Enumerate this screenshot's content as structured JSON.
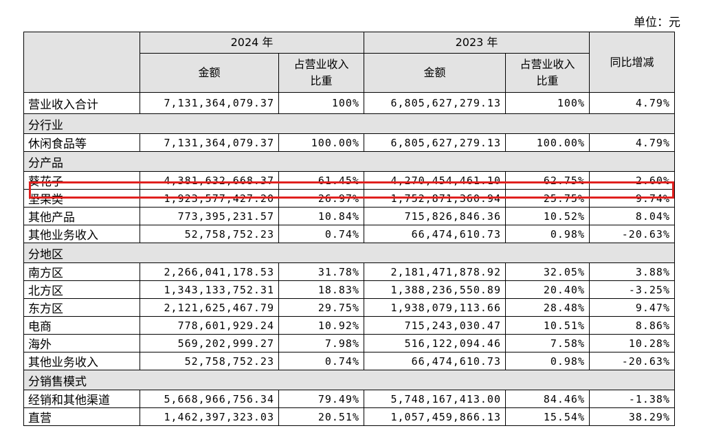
{
  "unit_label": "单位：元",
  "header": {
    "year_2024": "2024 年",
    "year_2023": "2023 年",
    "amount": "金额",
    "share_line1": "占营业收入",
    "share_line2": "比重",
    "yoy": "同比增减"
  },
  "total": {
    "label": "营业收入合计",
    "amt_2024": "7,131,364,079.37",
    "pct_2024": "100%",
    "amt_2023": "6,805,627,279.13",
    "pct_2023": "100%",
    "yoy": "4.79%"
  },
  "sections": {
    "industry": "分行业",
    "product": "分产品",
    "region": "分地区",
    "sales_mode": "分销售模式"
  },
  "rows": [
    {
      "label": "休闲食品等",
      "amt_2024": "7,131,364,079.37",
      "pct_2024": "100.00%",
      "amt_2023": "6,805,627,279.13",
      "pct_2023": "100.00%",
      "yoy": "4.79%"
    },
    {
      "label": "葵花子",
      "amt_2024": "4,381,632,668.37",
      "pct_2024": "61.45%",
      "amt_2023": "4,270,454,461.10",
      "pct_2023": "62.75%",
      "yoy": "2.60%"
    },
    {
      "label": "坚果类",
      "amt_2024": "1,923,577,427.20",
      "pct_2024": "26.97%",
      "amt_2023": "1,752,871,360.94",
      "pct_2023": "25.75%",
      "yoy": "9.74%"
    },
    {
      "label": "其他产品",
      "amt_2024": "773,395,231.57",
      "pct_2024": "10.84%",
      "amt_2023": "715,826,846.36",
      "pct_2023": "10.52%",
      "yoy": "8.04%"
    },
    {
      "label": "其他业务收入",
      "amt_2024": "52,758,752.23",
      "pct_2024": "0.74%",
      "amt_2023": "66,474,610.73",
      "pct_2023": "0.98%",
      "yoy": "-20.63%"
    },
    {
      "label": "南方区",
      "amt_2024": "2,266,041,178.53",
      "pct_2024": "31.78%",
      "amt_2023": "2,181,471,878.92",
      "pct_2023": "32.05%",
      "yoy": "3.88%"
    },
    {
      "label": "北方区",
      "amt_2024": "1,343,133,752.31",
      "pct_2024": "18.83%",
      "amt_2023": "1,388,236,550.89",
      "pct_2023": "20.40%",
      "yoy": "-3.25%"
    },
    {
      "label": "东方区",
      "amt_2024": "2,121,625,467.79",
      "pct_2024": "29.75%",
      "amt_2023": "1,938,079,113.66",
      "pct_2023": "28.48%",
      "yoy": "9.47%"
    },
    {
      "label": "电商",
      "amt_2024": "778,601,929.24",
      "pct_2024": "10.92%",
      "amt_2023": "715,243,030.47",
      "pct_2023": "10.51%",
      "yoy": "8.86%"
    },
    {
      "label": "海外",
      "amt_2024": "569,202,999.27",
      "pct_2024": "7.98%",
      "amt_2023": "516,122,094.46",
      "pct_2023": "7.58%",
      "yoy": "10.28%"
    },
    {
      "label": "其他业务收入",
      "amt_2024": "52,758,752.23",
      "pct_2024": "0.74%",
      "amt_2023": "66,474,610.73",
      "pct_2023": "0.98%",
      "yoy": "-20.63%"
    },
    {
      "label": "经销和其他渠道",
      "amt_2024": "5,668,966,756.34",
      "pct_2024": "79.49%",
      "amt_2023": "5,748,167,413.00",
      "pct_2023": "84.46%",
      "yoy": "-1.38%"
    },
    {
      "label": "直营",
      "amt_2024": "1,462,397,323.03",
      "pct_2024": "20.51%",
      "amt_2023": "1,057,459,866.13",
      "pct_2023": "15.54%",
      "yoy": "38.29%"
    }
  ],
  "highlight_color": "#e0201e"
}
